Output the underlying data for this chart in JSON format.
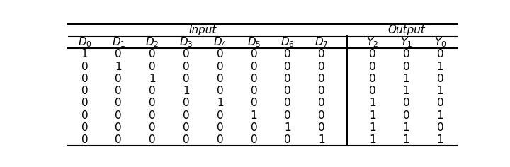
{
  "input_header": "Input",
  "output_header": "Output",
  "col_labels_display": [
    "$D_0$",
    "$D_1$",
    "$D_2$",
    "$D_3$",
    "$D_4$",
    "$D_5$",
    "$D_6$",
    "$D_7$",
    "$Y_2$",
    "$Y_1$",
    "$Y_0$"
  ],
  "rows": [
    [
      1,
      0,
      0,
      0,
      0,
      0,
      0,
      0,
      0,
      0,
      0
    ],
    [
      0,
      1,
      0,
      0,
      0,
      0,
      0,
      0,
      0,
      0,
      1
    ],
    [
      0,
      0,
      1,
      0,
      0,
      0,
      0,
      0,
      0,
      1,
      0
    ],
    [
      0,
      0,
      0,
      1,
      0,
      0,
      0,
      0,
      0,
      1,
      1
    ],
    [
      0,
      0,
      0,
      0,
      1,
      0,
      0,
      0,
      1,
      0,
      0
    ],
    [
      0,
      0,
      0,
      0,
      0,
      1,
      0,
      0,
      1,
      0,
      1
    ],
    [
      0,
      0,
      0,
      0,
      0,
      0,
      1,
      0,
      1,
      1,
      0
    ],
    [
      0,
      0,
      0,
      0,
      0,
      0,
      0,
      1,
      1,
      1,
      1
    ]
  ],
  "n_input_cols": 8,
  "n_output_cols": 3,
  "bg_color": "#ffffff",
  "line_color": "#000000",
  "font_size": 11,
  "header_font_size": 11,
  "figsize": [
    7.2,
    2.36
  ],
  "dpi": 100
}
